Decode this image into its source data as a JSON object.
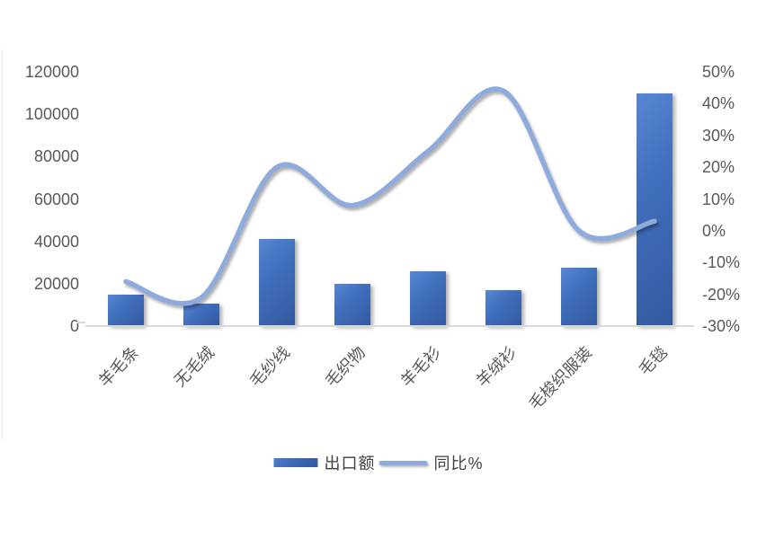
{
  "chart_data": {
    "type": "combo (bar + smoothed line)",
    "title": "",
    "categories": [
      "羊毛条",
      "无毛绒",
      "毛纱线",
      "毛织物",
      "羊毛衫",
      "羊绒衫",
      "毛梭织服装",
      "毛毯"
    ],
    "series": [
      {
        "name": "出口额",
        "type": "bar",
        "axis": "left",
        "values": [
          15000,
          10500,
          41000,
          20000,
          26000,
          17000,
          27500,
          110000
        ]
      },
      {
        "name": "同比%",
        "type": "line",
        "axis": "right",
        "unit": "%",
        "values": [
          -16,
          -21,
          20,
          8,
          25,
          44,
          0,
          3
        ]
      }
    ],
    "left_axis": {
      "min": 0,
      "max": 120000,
      "step": 20000,
      "tick_labels_top_to_bottom": [
        "120000",
        "100000",
        "80000",
        "60000",
        "40000",
        "20000",
        "0"
      ]
    },
    "right_axis": {
      "min": -30,
      "max": 50,
      "step": 10,
      "tick_labels_top_to_bottom": [
        "50%",
        "40%",
        "30%",
        "20%",
        "10%",
        "0%",
        "-10%",
        "-20%",
        "-30%"
      ]
    },
    "legend": {
      "position": "bottom",
      "entries": [
        "出口额",
        "同比%"
      ]
    },
    "grid": false,
    "xlabel": "",
    "ylabel": ""
  },
  "colors": {
    "bar_fill": "#3F6CB8",
    "line_stroke": "#8FAADC",
    "axis_text": "#595959",
    "axis_line": "#D9D9D9"
  }
}
